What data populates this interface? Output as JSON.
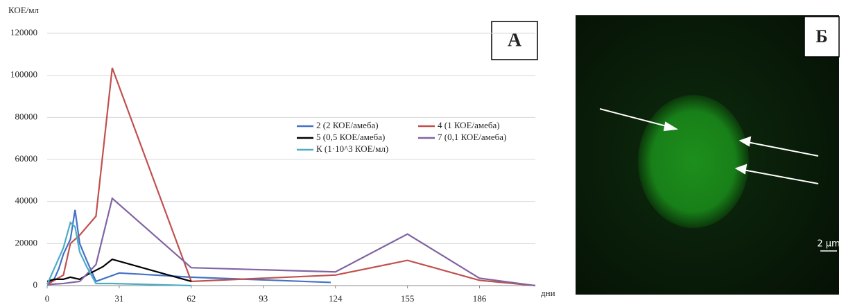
{
  "chart_data": {
    "type": "line",
    "y_label": "КОЕ/мл",
    "x_label": "дни",
    "panel_label": "А",
    "xlim": [
      0,
      210
    ],
    "xticks": [
      0,
      31,
      62,
      93,
      124,
      155,
      186
    ],
    "ylim": [
      0,
      120000
    ],
    "yticks": [
      0,
      20000,
      40000,
      60000,
      80000,
      100000,
      120000
    ],
    "grid": true,
    "series": [
      {
        "name": "2 (2 КОЕ/амеба)",
        "color": "#4472c4",
        "x": [
          0,
          3,
          5,
          7,
          10,
          12,
          14,
          17,
          21,
          31,
          62,
          122
        ],
        "values": [
          1000,
          3000,
          8000,
          15000,
          22000,
          36000,
          20000,
          12000,
          2000,
          6000,
          4000,
          1500
        ]
      },
      {
        "name": "4 (1 КОЕ/амеба)",
        "color": "#c0504d",
        "x": [
          0,
          7,
          10,
          14,
          21,
          28,
          62,
          124,
          155,
          186,
          210
        ],
        "values": [
          500,
          5000,
          20000,
          24000,
          33000,
          103500,
          2000,
          5000,
          12000,
          2500,
          0
        ]
      },
      {
        "name": "5 (0,5 КОЕ/амеба)",
        "color": "#000000",
        "x": [
          0,
          3,
          7,
          10,
          14,
          17,
          24,
          28,
          62
        ],
        "values": [
          2000,
          3000,
          3000,
          4000,
          3000,
          5000,
          9000,
          12500,
          2000
        ]
      },
      {
        "name": "7 (0,1 КОЕ/амеба)",
        "color": "#8064a2",
        "x": [
          0,
          7,
          14,
          21,
          28,
          62,
          124,
          155,
          186,
          210
        ],
        "values": [
          500,
          1000,
          2000,
          10000,
          41500,
          8500,
          6500,
          24500,
          3500,
          0
        ]
      },
      {
        "name": "К (1·10^3  КОЕ/мл)",
        "color": "#4bacc6",
        "x": [
          0,
          3,
          7,
          10,
          12,
          14,
          17,
          21,
          28,
          62
        ],
        "values": [
          500,
          8000,
          18000,
          30000,
          28000,
          16000,
          9000,
          1000,
          1000,
          0
        ]
      }
    ]
  },
  "image": {
    "panel_label": "Б",
    "scale_bar": "2 µm"
  }
}
